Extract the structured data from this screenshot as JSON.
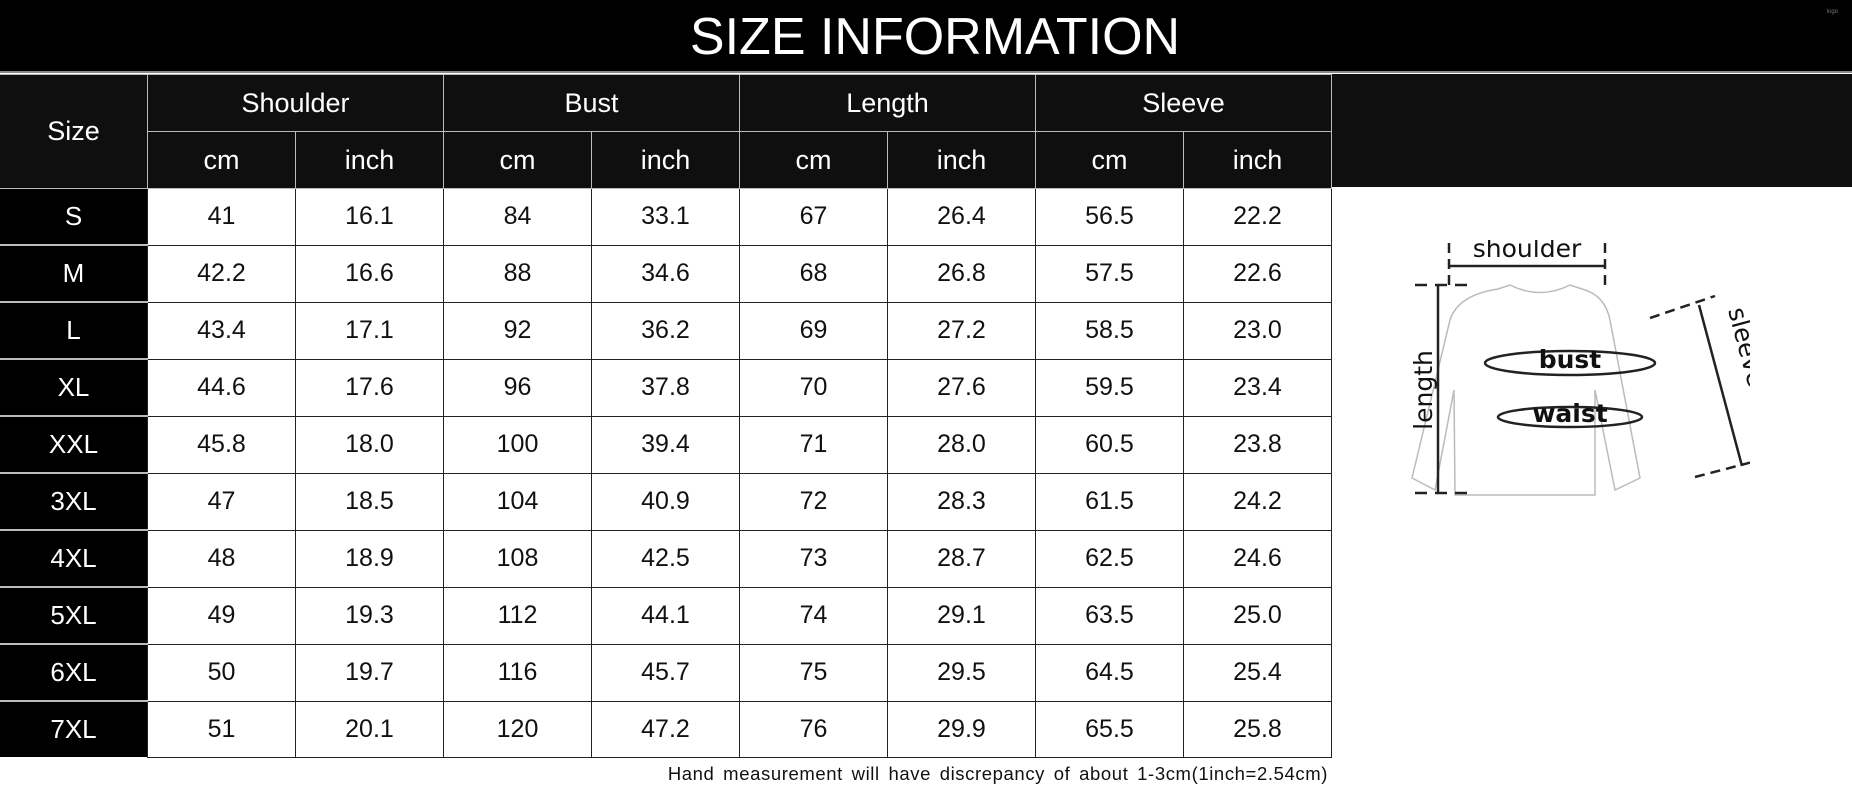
{
  "title": "SIZE INFORMATION",
  "watermark": "logo",
  "table": {
    "size_header": "Size",
    "groups": [
      "Shoulder",
      "Bust",
      "Length",
      "Sleeve"
    ],
    "units": [
      "cm",
      "inch",
      "cm",
      "inch",
      "cm",
      "inch",
      "cm",
      "inch"
    ],
    "rows": [
      {
        "size": "S",
        "values": [
          "41",
          "16.1",
          "84",
          "33.1",
          "67",
          "26.4",
          "56.5",
          "22.2"
        ]
      },
      {
        "size": "M",
        "values": [
          "42.2",
          "16.6",
          "88",
          "34.6",
          "68",
          "26.8",
          "57.5",
          "22.6"
        ]
      },
      {
        "size": "L",
        "values": [
          "43.4",
          "17.1",
          "92",
          "36.2",
          "69",
          "27.2",
          "58.5",
          "23.0"
        ]
      },
      {
        "size": "XL",
        "values": [
          "44.6",
          "17.6",
          "96",
          "37.8",
          "70",
          "27.6",
          "59.5",
          "23.4"
        ]
      },
      {
        "size": "XXL",
        "values": [
          "45.8",
          "18.0",
          "100",
          "39.4",
          "71",
          "28.0",
          "60.5",
          "23.8"
        ]
      },
      {
        "size": "3XL",
        "values": [
          "47",
          "18.5",
          "104",
          "40.9",
          "72",
          "28.3",
          "61.5",
          "24.2"
        ]
      },
      {
        "size": "4XL",
        "values": [
          "48",
          "18.9",
          "108",
          "42.5",
          "73",
          "28.7",
          "62.5",
          "24.6"
        ]
      },
      {
        "size": "5XL",
        "values": [
          "49",
          "19.3",
          "112",
          "44.1",
          "74",
          "29.1",
          "63.5",
          "25.0"
        ]
      },
      {
        "size": "6XL",
        "values": [
          "50",
          "19.7",
          "116",
          "45.7",
          "75",
          "29.5",
          "64.5",
          "25.4"
        ]
      },
      {
        "size": "7XL",
        "values": [
          "51",
          "20.1",
          "120",
          "47.2",
          "76",
          "29.9",
          "65.5",
          "25.8"
        ]
      }
    ]
  },
  "note": "Hand measurement will have discrepancy of about 1-3cm(1inch=2.54cm)",
  "diagram": {
    "shoulder": "shoulder",
    "length": "length",
    "bust": "bust",
    "waist": "waist",
    "sleeve": "sleeve length"
  }
}
